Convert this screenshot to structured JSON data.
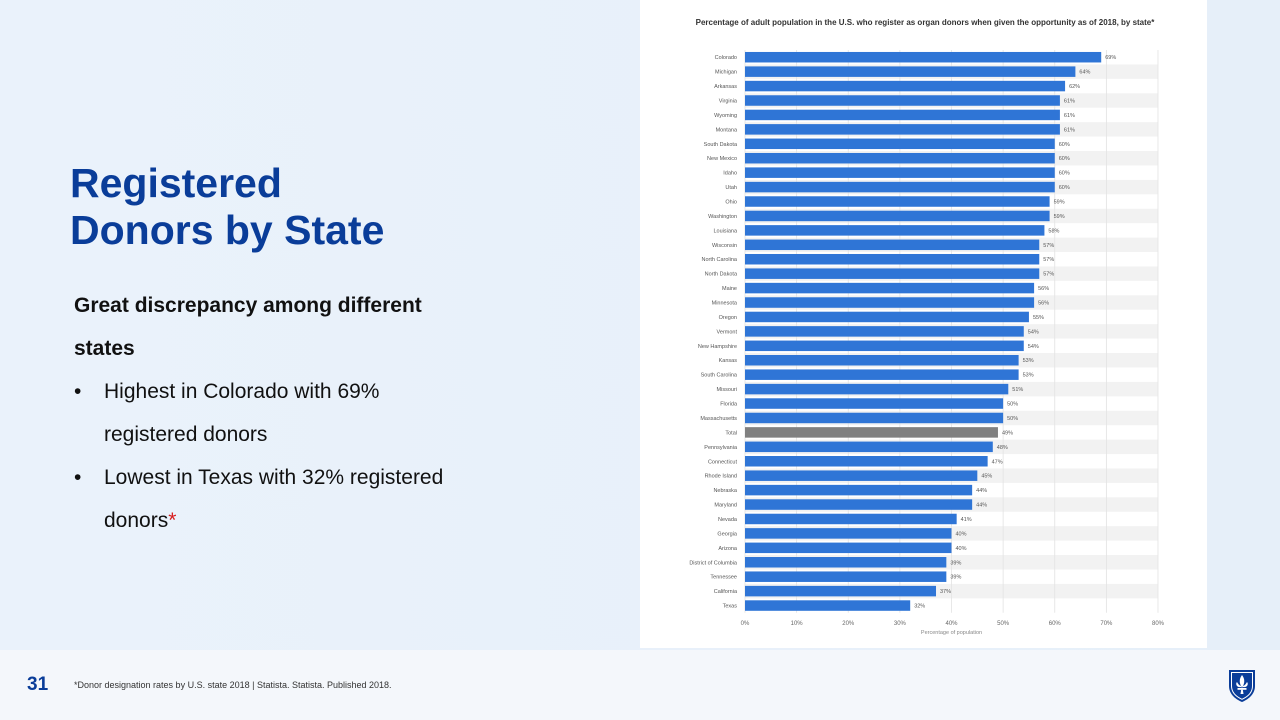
{
  "slide": {
    "title_line1": "Registered",
    "title_line2": "Donors by State",
    "subhead": "Great discrepancy among different states",
    "bullets": [
      {
        "marker": "•",
        "text": "Highest in Colorado with 69% registered donors"
      },
      {
        "marker": "•",
        "text": "Lowest in Texas with 32% registered donors",
        "suffix": "*"
      }
    ],
    "page_number": "31",
    "citation": "*Donor designation rates by U.S. state 2018 | Statista. Statista. Published 2018."
  },
  "colors": {
    "title": "#0a3d99",
    "bar": "#2f75d6",
    "total_bar": "#808080",
    "asterisk": "#d81e1e"
  },
  "logo": {
    "icon": "fleur-de-lis-shield-icon"
  },
  "chart_data": {
    "type": "bar",
    "orientation": "horizontal",
    "title": "Percentage of adult population in the U.S. who register as organ donors when given the opportunity as of 2018, by state*",
    "xlabel": "Percentage of population",
    "xlim": [
      0,
      80
    ],
    "xticks": [
      "0%",
      "10%",
      "20%",
      "30%",
      "40%",
      "50%",
      "60%",
      "70%",
      "80%"
    ],
    "highlight": "Total",
    "categories": [
      "Colorado",
      "Michigan",
      "Arkansas",
      "Virginia",
      "Wyoming",
      "Montana",
      "South Dakota",
      "New Mexico",
      "Idaho",
      "Utah",
      "Ohio",
      "Washington",
      "Louisiana",
      "Wisconsin",
      "North Carolina",
      "North Dakota",
      "Maine",
      "Minnesota",
      "Oregon",
      "Vermont",
      "New Hampshire",
      "Kansas",
      "South Carolina",
      "Missouri",
      "Florida",
      "Massachusetts",
      "Total",
      "Pennsylvania",
      "Connecticut",
      "Rhode Island",
      "Nebraska",
      "Maryland",
      "Nevada",
      "Georgia",
      "Arizona",
      "District of Columbia",
      "Tennessee",
      "California",
      "Texas"
    ],
    "values": [
      69,
      64,
      62,
      61,
      61,
      61,
      60,
      60,
      60,
      60,
      59,
      59,
      58,
      57,
      57,
      57,
      56,
      56,
      55,
      54,
      54,
      53,
      53,
      51,
      50,
      50,
      49,
      48,
      47,
      45,
      44,
      44,
      41,
      40,
      40,
      39,
      39,
      37,
      32
    ],
    "labels": [
      "69%",
      "64%",
      "62%",
      "61%",
      "61%",
      "61%",
      "60%",
      "60%",
      "60%",
      "60%",
      "59%",
      "59%",
      "58%",
      "57%",
      "57%",
      "57%",
      "56%",
      "56%",
      "55%",
      "54%",
      "54%",
      "53%",
      "53%",
      "51%",
      "50%",
      "50%",
      "49%",
      "48%",
      "47%",
      "45%",
      "44%",
      "44%",
      "41%",
      "40%",
      "40%",
      "39%",
      "39%",
      "37%",
      "32%"
    ]
  }
}
